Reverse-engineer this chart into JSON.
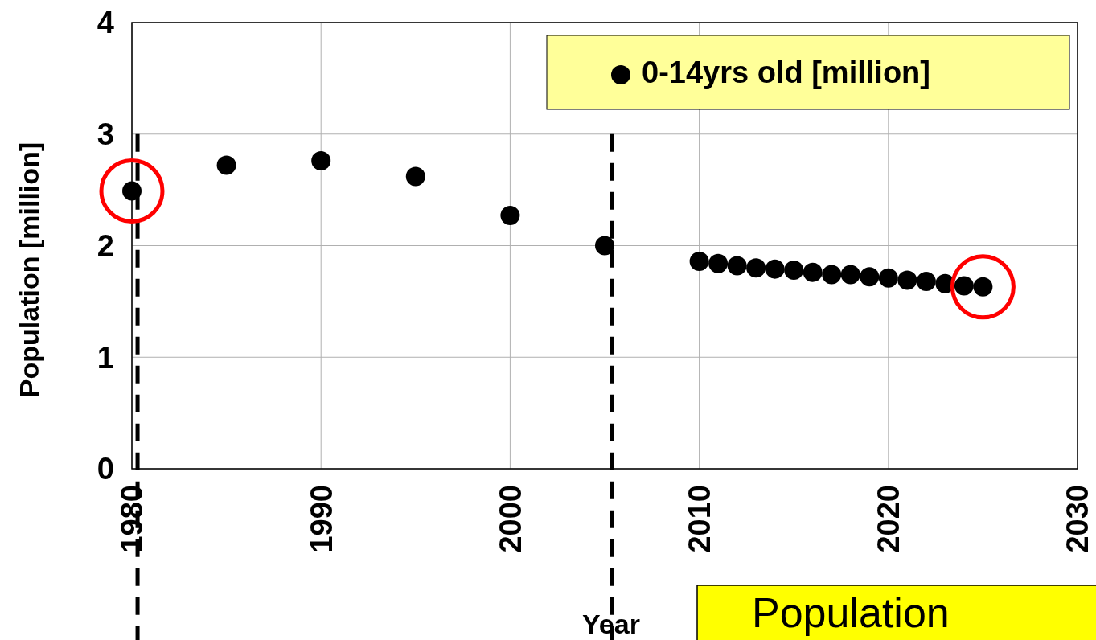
{
  "chart_data": {
    "type": "scatter",
    "xlabel": "Year",
    "ylabel": "Population [million]",
    "x": [
      1980,
      1985,
      1990,
      1995,
      2000,
      2005,
      2010,
      2011,
      2012,
      2013,
      2014,
      2015,
      2016,
      2017,
      2018,
      2019,
      2020,
      2021,
      2022,
      2023,
      2024,
      2025
    ],
    "series": [
      {
        "name": "0-14yrs old [million]",
        "color": "#000000",
        "values": [
          2.49,
          2.72,
          2.76,
          2.62,
          2.27,
          2.0,
          1.86,
          1.84,
          1.82,
          1.8,
          1.79,
          1.78,
          1.76,
          1.74,
          1.74,
          1.72,
          1.71,
          1.69,
          1.68,
          1.66,
          1.64,
          1.63
        ]
      }
    ],
    "xlim": [
      1980,
      2030
    ],
    "xticks": [
      1980,
      1990,
      2000,
      2010,
      2020,
      2030
    ],
    "ylim": [
      0,
      4
    ],
    "yticks": [
      0,
      1,
      2,
      3,
      4
    ],
    "grid": true,
    "legend": "top right",
    "marker": "circle",
    "ref_lines": [
      {
        "axis": "x",
        "value": 1980.3,
        "color": "#000000",
        "line_style": "dashed"
      },
      {
        "axis": "x",
        "value": 2005.4,
        "color": "#000000",
        "line_style": "dashed"
      }
    ],
    "annotations": [
      "Population"
    ]
  }
}
